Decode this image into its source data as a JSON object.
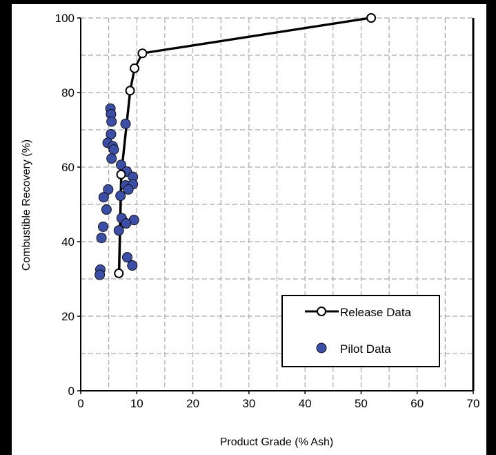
{
  "chart_data": {
    "type": "scatter",
    "title": "",
    "xlabel": "Product Grade (% Ash)",
    "ylabel": "Combustible Recovery (%)",
    "xlim": [
      0,
      70
    ],
    "ylim": [
      0,
      100
    ],
    "x_ticks": [
      0,
      10,
      20,
      30,
      40,
      50,
      60,
      70
    ],
    "y_ticks": [
      0,
      20,
      40,
      60,
      80,
      100
    ],
    "x_tick_labels": [
      "0",
      "10",
      "20",
      "30",
      "40",
      "50",
      "60",
      "70"
    ],
    "y_tick_labels": [
      "0",
      "20",
      "40",
      "60",
      "80",
      "100"
    ],
    "grid": "dashed",
    "grid_minor_x": 5,
    "grid_minor_y": 10,
    "legend_position": "lower-right",
    "series": [
      {
        "name": "Release Data",
        "kind": "line-markers",
        "color": "#000000",
        "marker": "open-circle",
        "points": [
          [
            6.8,
            31.5
          ],
          [
            7.2,
            58.0
          ],
          [
            8.8,
            80.5
          ],
          [
            9.6,
            86.5
          ],
          [
            11.0,
            90.5
          ],
          [
            51.8,
            100.0
          ]
        ]
      },
      {
        "name": "Pilot Data",
        "kind": "scatter",
        "color": "#3B4FA8",
        "marker": "filled-circle",
        "points": [
          [
            5.3,
            75.7
          ],
          [
            5.4,
            74.2
          ],
          [
            5.5,
            72.2
          ],
          [
            8.0,
            71.6
          ],
          [
            5.4,
            68.8
          ],
          [
            4.8,
            66.5
          ],
          [
            5.7,
            65.6
          ],
          [
            5.9,
            64.7
          ],
          [
            5.5,
            62.3
          ],
          [
            7.2,
            60.6
          ],
          [
            8.2,
            58.8
          ],
          [
            9.3,
            57.4
          ],
          [
            8.0,
            55.1
          ],
          [
            9.3,
            55.4
          ],
          [
            8.5,
            54.0
          ],
          [
            4.9,
            54.0
          ],
          [
            4.1,
            51.9
          ],
          [
            7.1,
            52.3
          ],
          [
            4.6,
            48.6
          ],
          [
            7.3,
            46.3
          ],
          [
            9.5,
            45.8
          ],
          [
            8.1,
            44.9
          ],
          [
            4.0,
            44.0
          ],
          [
            6.8,
            43.0
          ],
          [
            3.7,
            41.0
          ],
          [
            8.3,
            35.8
          ],
          [
            9.2,
            33.6
          ],
          [
            3.5,
            32.5
          ],
          [
            3.4,
            31.1
          ]
        ]
      }
    ]
  }
}
